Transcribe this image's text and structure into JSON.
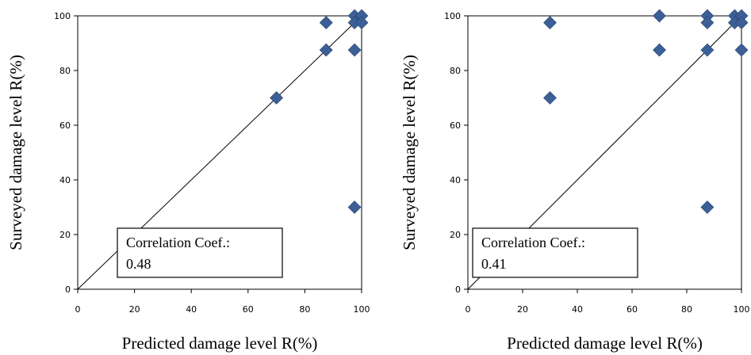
{
  "chart_data": [
    {
      "type": "scatter",
      "xlabel": "Predicted damage level R(%)",
      "ylabel": "Surveyed damage level R(%)",
      "xlim": [
        0,
        100
      ],
      "ylim": [
        0,
        100
      ],
      "xticks": [
        "0",
        "20",
        "40",
        "60",
        "80",
        "100"
      ],
      "yticks": [
        "0",
        "20",
        "40",
        "60",
        "80",
        "100"
      ],
      "annotation": {
        "label": "Correlation Coef.:",
        "value": "0.48"
      },
      "reference_line": [
        [
          0,
          0
        ],
        [
          100,
          100
        ]
      ],
      "points": [
        {
          "x": 87.5,
          "y": 97.5
        },
        {
          "x": 87.5,
          "y": 87.5
        },
        {
          "x": 70,
          "y": 70
        },
        {
          "x": 97.5,
          "y": 100
        },
        {
          "x": 100,
          "y": 100
        },
        {
          "x": 97.5,
          "y": 97.5
        },
        {
          "x": 100,
          "y": 97.5
        },
        {
          "x": 97.5,
          "y": 87.5
        },
        {
          "x": 97.5,
          "y": 30
        }
      ],
      "marker_color": "#3c5f96",
      "grid": false
    },
    {
      "type": "scatter",
      "xlabel": "Predicted damage level R(%)",
      "ylabel": "Surveyed damage level R(%)",
      "xlim": [
        0,
        100
      ],
      "ylim": [
        0,
        100
      ],
      "xticks": [
        "0",
        "20",
        "40",
        "60",
        "80",
        "100"
      ],
      "yticks": [
        "0",
        "20",
        "40",
        "60",
        "80",
        "100"
      ],
      "annotation": {
        "label": "Correlation Coef.:",
        "value": "0.41"
      },
      "reference_line": [
        [
          0,
          0
        ],
        [
          100,
          100
        ]
      ],
      "points": [
        {
          "x": 30,
          "y": 97.5
        },
        {
          "x": 30,
          "y": 70
        },
        {
          "x": 70,
          "y": 100
        },
        {
          "x": 70,
          "y": 87.5
        },
        {
          "x": 87.5,
          "y": 100
        },
        {
          "x": 87.5,
          "y": 97.5
        },
        {
          "x": 87.5,
          "y": 87.5
        },
        {
          "x": 87.5,
          "y": 30
        },
        {
          "x": 97.5,
          "y": 100
        },
        {
          "x": 100,
          "y": 100
        },
        {
          "x": 97.5,
          "y": 97.5
        },
        {
          "x": 100,
          "y": 97.5
        },
        {
          "x": 100,
          "y": 87.5
        }
      ],
      "marker_color": "#3c5f96",
      "grid": false
    }
  ]
}
